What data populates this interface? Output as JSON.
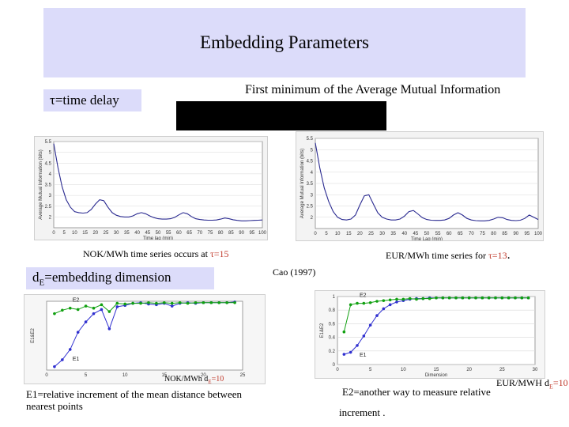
{
  "slide": {
    "title": "Embedding Parameters",
    "tau_label": "τ=time delay",
    "ami_heading": "First minimum of the Average Mutual Information",
    "dim_label": "d",
    "dim_label_sub": "E",
    "dim_label_rest": "=embedding dimension",
    "cao_ref": "Cao (1997)",
    "nok_tau_caption_pre": "NOK/MWh time series occurs at ",
    "nok_tau_caption_tau": "τ=15",
    "eur_tau_caption_pre": "EUR/MWh time series for ",
    "eur_tau_caption_tau": "τ=13",
    "eur_tau_caption_post": ".",
    "nok_de_caption_pre": "NOK/MWh d",
    "nok_de_caption_sub": "E",
    "nok_de_caption_post": "=10",
    "eur_de_caption_pre": "EUR/MWH d",
    "eur_de_caption_sub": "E",
    "eur_de_caption_post": "=10",
    "e1_note": "E1=relative  increment of the mean distance between nearest points",
    "e2_note_line1": "E2=another way to measure relative",
    "e2_note_line2": "increment ."
  },
  "colors": {
    "title_bg": "#dcdcfa",
    "ami_line": "#2a2a90",
    "e1_line": "#3030d0",
    "e2_line": "#10a010",
    "caption_red": "#c0392b"
  },
  "chart_data": [
    {
      "name": "ami-nok",
      "type": "line",
      "xlabel": "Time lag (min)",
      "ylabel": "Average Mutual Information (bits)",
      "xlim": [
        0,
        100
      ],
      "ylim": [
        1.5,
        5.5
      ],
      "x_ticks": [
        0,
        5,
        10,
        15,
        20,
        25,
        30,
        35,
        40,
        45,
        50,
        55,
        60,
        65,
        70,
        75,
        80,
        85,
        90,
        95,
        100
      ],
      "y_ticks": [
        2,
        2.5,
        3,
        3.5,
        4,
        4.5,
        5,
        5.5
      ],
      "x": [
        0,
        2,
        4,
        6,
        8,
        10,
        12,
        14,
        16,
        18,
        20,
        22,
        24,
        26,
        28,
        30,
        32,
        34,
        36,
        38,
        40,
        42,
        44,
        46,
        48,
        50,
        52,
        54,
        56,
        58,
        60,
        62,
        64,
        66,
        68,
        70,
        72,
        74,
        76,
        78,
        80,
        82,
        84,
        86,
        88,
        90,
        92,
        94,
        96,
        98,
        100
      ],
      "values": [
        5.4,
        4.3,
        3.4,
        2.8,
        2.45,
        2.25,
        2.2,
        2.18,
        2.2,
        2.35,
        2.6,
        2.8,
        2.75,
        2.45,
        2.2,
        2.08,
        2.02,
        2.0,
        2.0,
        2.05,
        2.15,
        2.2,
        2.15,
        2.05,
        1.97,
        1.92,
        1.9,
        1.9,
        1.92,
        1.98,
        2.1,
        2.2,
        2.15,
        2.02,
        1.92,
        1.88,
        1.86,
        1.85,
        1.85,
        1.86,
        1.9,
        1.95,
        1.92,
        1.87,
        1.84,
        1.82,
        1.82,
        1.83,
        1.84,
        1.85,
        1.86
      ]
    },
    {
      "name": "ami-eur",
      "type": "line",
      "xlabel": "Time Lag (min)",
      "ylabel": "Average Mutual Information (bits)",
      "xlim": [
        0,
        100
      ],
      "ylim": [
        1.5,
        5.5
      ],
      "x_ticks": [
        0,
        5,
        10,
        15,
        20,
        25,
        30,
        35,
        40,
        45,
        50,
        55,
        60,
        65,
        70,
        75,
        80,
        85,
        90,
        95,
        100
      ],
      "y_ticks": [
        2,
        2.5,
        3,
        3.5,
        4,
        4.5,
        5,
        5.5
      ],
      "x": [
        0,
        2,
        4,
        6,
        8,
        10,
        12,
        14,
        16,
        18,
        20,
        22,
        24,
        26,
        28,
        30,
        32,
        34,
        36,
        38,
        40,
        42,
        44,
        46,
        48,
        50,
        52,
        54,
        56,
        58,
        60,
        62,
        64,
        66,
        68,
        70,
        72,
        74,
        76,
        78,
        80,
        82,
        84,
        86,
        88,
        90,
        92,
        94,
        96,
        98,
        100
      ],
      "values": [
        5.3,
        4.2,
        3.3,
        2.7,
        2.25,
        2.0,
        1.9,
        1.88,
        1.92,
        2.1,
        2.55,
        2.95,
        3.0,
        2.6,
        2.2,
        2.0,
        1.92,
        1.88,
        1.88,
        1.92,
        2.05,
        2.25,
        2.3,
        2.15,
        1.98,
        1.9,
        1.87,
        1.86,
        1.86,
        1.88,
        1.95,
        2.1,
        2.2,
        2.1,
        1.95,
        1.88,
        1.85,
        1.84,
        1.84,
        1.86,
        1.92,
        2.0,
        1.98,
        1.9,
        1.86,
        1.85,
        1.87,
        1.95,
        2.1,
        2.0,
        1.9
      ]
    },
    {
      "name": "cao-nok",
      "type": "line",
      "xlabel": "",
      "ylabel": "E1&E2",
      "xlim": [
        0,
        25
      ],
      "ylim": [
        0,
        1
      ],
      "x_ticks": [
        0,
        5,
        10,
        15,
        20,
        25
      ],
      "series": [
        {
          "name": "E1",
          "x": [
            1,
            2,
            3,
            4,
            5,
            6,
            7,
            8,
            9,
            10,
            11,
            12,
            13,
            14,
            15,
            16,
            17,
            18,
            19,
            20,
            21,
            22,
            23,
            24
          ],
          "values": [
            0.05,
            0.15,
            0.3,
            0.55,
            0.7,
            0.82,
            0.88,
            0.6,
            0.92,
            0.94,
            0.97,
            0.98,
            0.96,
            0.95,
            0.97,
            0.93,
            0.97,
            0.98,
            0.97,
            0.98,
            0.98,
            0.98,
            0.98,
            0.99
          ]
        },
        {
          "name": "E2",
          "x": [
            1,
            2,
            3,
            4,
            5,
            6,
            7,
            8,
            9,
            10,
            11,
            12,
            13,
            14,
            15,
            16,
            17,
            18,
            19,
            20,
            21,
            22,
            23,
            24
          ],
          "values": [
            0.82,
            0.87,
            0.9,
            0.88,
            0.93,
            0.9,
            0.95,
            0.85,
            0.97,
            0.96,
            0.97,
            0.97,
            0.98,
            0.97,
            0.98,
            0.97,
            0.98,
            0.97,
            0.98,
            0.98,
            0.98,
            0.98,
            0.98,
            0.98
          ]
        }
      ]
    },
    {
      "name": "cao-eur",
      "type": "line",
      "xlabel": "Dimension",
      "ylabel": "E1&E2",
      "xlim": [
        0,
        30
      ],
      "ylim": [
        0,
        1
      ],
      "x_ticks": [
        0,
        5,
        10,
        15,
        20,
        25,
        30
      ],
      "y_ticks": [
        0,
        0.2,
        0.4,
        0.6,
        0.8,
        1
      ],
      "series": [
        {
          "name": "E1",
          "x": [
            1,
            2,
            3,
            4,
            5,
            6,
            7,
            8,
            9,
            10,
            11,
            12,
            13,
            14,
            15,
            16,
            17,
            18,
            19,
            20,
            21,
            22,
            23,
            24,
            25,
            26,
            27,
            28,
            29
          ],
          "values": [
            0.15,
            0.18,
            0.28,
            0.42,
            0.58,
            0.72,
            0.82,
            0.88,
            0.92,
            0.94,
            0.96,
            0.97,
            0.97,
            0.98,
            0.98,
            0.98,
            0.98,
            0.98,
            0.98,
            0.98,
            0.98,
            0.98,
            0.98,
            0.98,
            0.98,
            0.98,
            0.98,
            0.98,
            0.98
          ]
        },
        {
          "name": "E2",
          "x": [
            1,
            2,
            3,
            4,
            5,
            6,
            7,
            8,
            9,
            10,
            11,
            12,
            13,
            14,
            15,
            16,
            17,
            18,
            19,
            20,
            21,
            22,
            23,
            24,
            25,
            26,
            27,
            28,
            29
          ],
          "values": [
            0.48,
            0.88,
            0.9,
            0.9,
            0.91,
            0.93,
            0.94,
            0.95,
            0.96,
            0.96,
            0.97,
            0.96,
            0.97,
            0.97,
            0.98,
            0.98,
            0.98,
            0.98,
            0.98,
            0.98,
            0.98,
            0.98,
            0.98,
            0.98,
            0.98,
            0.98,
            0.98,
            0.98,
            0.98
          ]
        }
      ]
    }
  ]
}
